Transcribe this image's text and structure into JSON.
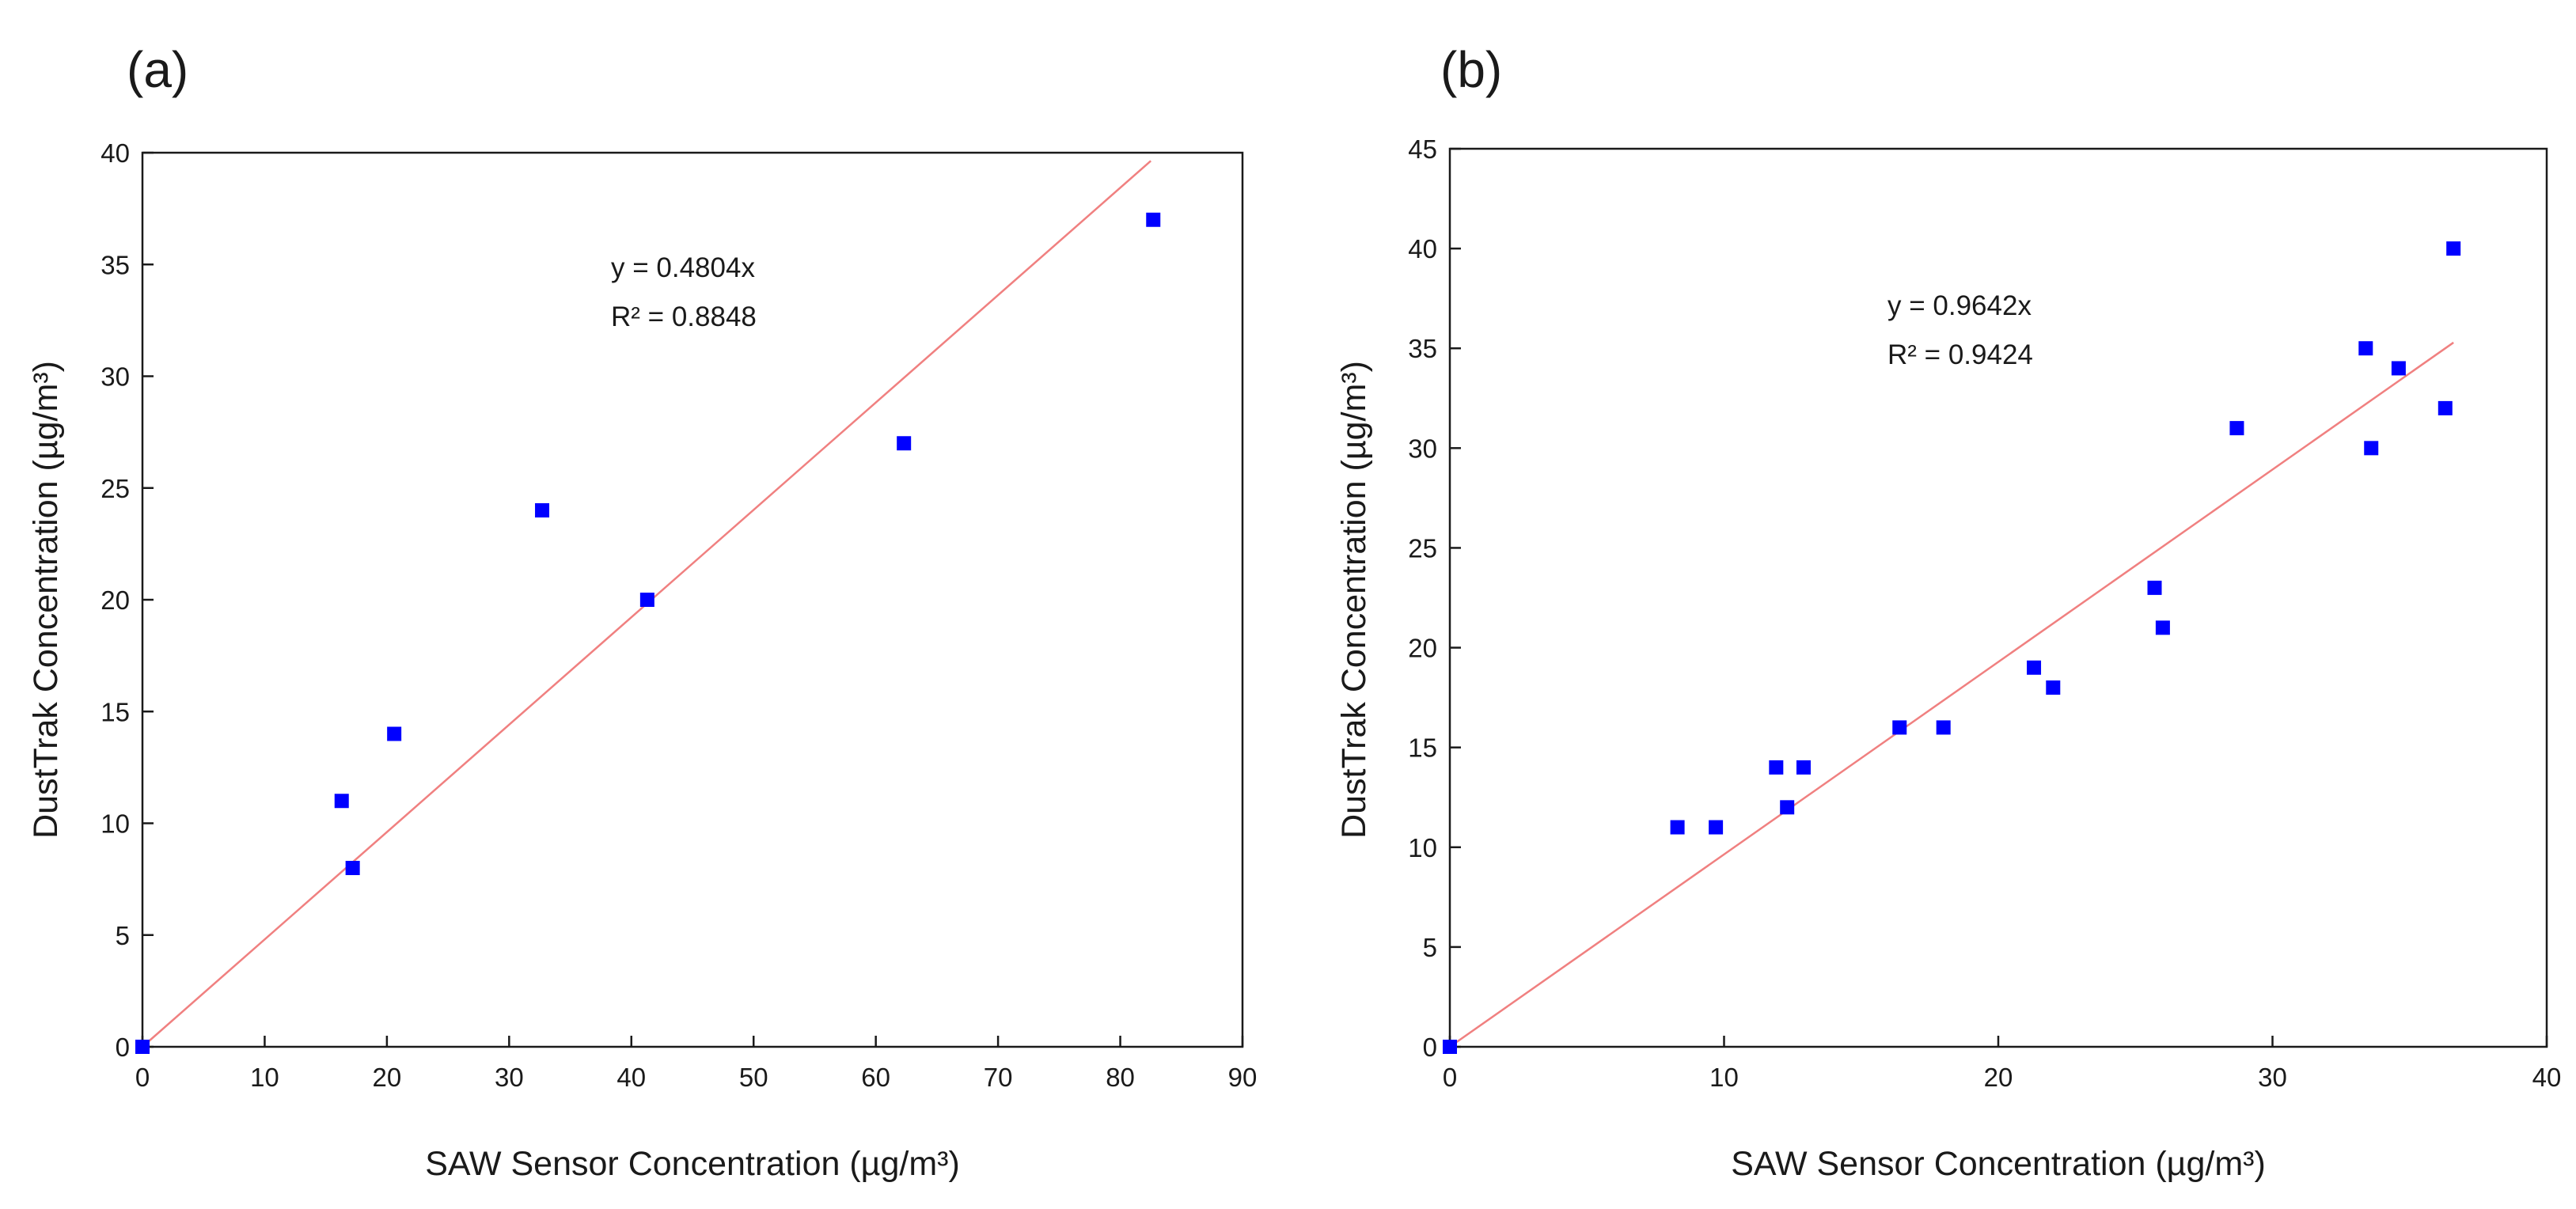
{
  "chart_data": [
    {
      "type": "scatter",
      "panel_label": "(a)",
      "xlabel": "SAW Sensor Concentration (µg/m³)",
      "ylabel": "DustTrak Concentration (µg/m³)",
      "xlim": [
        0,
        90
      ],
      "ylim": [
        0,
        40
      ],
      "xticks": [
        0,
        10,
        20,
        30,
        40,
        50,
        60,
        70,
        80,
        90
      ],
      "yticks": [
        0,
        5,
        10,
        15,
        20,
        25,
        30,
        35,
        40
      ],
      "grid": false,
      "series": [
        {
          "name": "measurements",
          "marker": "square",
          "color": "#0000ff",
          "x": [
            0,
            16.3,
            17.2,
            20.6,
            32.7,
            41.3,
            62.3,
            82.7
          ],
          "y": [
            0,
            11,
            8,
            14,
            24,
            20,
            27,
            37
          ]
        }
      ],
      "fit": {
        "slope": 0.4804,
        "x_range": [
          0,
          82.5
        ],
        "color": "#f08080"
      },
      "annotations": [
        "y = 0.4804x",
        "R² = 0.8848"
      ]
    },
    {
      "type": "scatter",
      "panel_label": "(b)",
      "xlabel": "SAW Sensor Concentration (µg/m³)",
      "ylabel": "DustTrak Concentration (µg/m³)",
      "xlim": [
        0,
        40
      ],
      "ylim": [
        0,
        45
      ],
      "xticks": [
        0,
        10,
        20,
        30,
        40
      ],
      "yticks": [
        0,
        5,
        10,
        15,
        20,
        25,
        30,
        35,
        40,
        45
      ],
      "grid": false,
      "series": [
        {
          "name": "measurements",
          "marker": "square",
          "color": "#0000ff",
          "x": [
            0,
            8.3,
            9.7,
            11.9,
            12.3,
            12.9,
            16.4,
            18.0,
            21.3,
            22.0,
            25.7,
            26.0,
            28.7,
            33.4,
            33.6,
            34.6,
            36.3,
            36.6
          ],
          "y": [
            0,
            11,
            11,
            14,
            12,
            14,
            16,
            16,
            19,
            18,
            23,
            21,
            31,
            35,
            30,
            34,
            32,
            40
          ]
        }
      ],
      "fit": {
        "slope": 0.9642,
        "x_range": [
          0,
          36.6
        ],
        "color": "#f08080"
      },
      "annotations": [
        "y = 0.9642x",
        "R² = 0.9424"
      ]
    }
  ]
}
